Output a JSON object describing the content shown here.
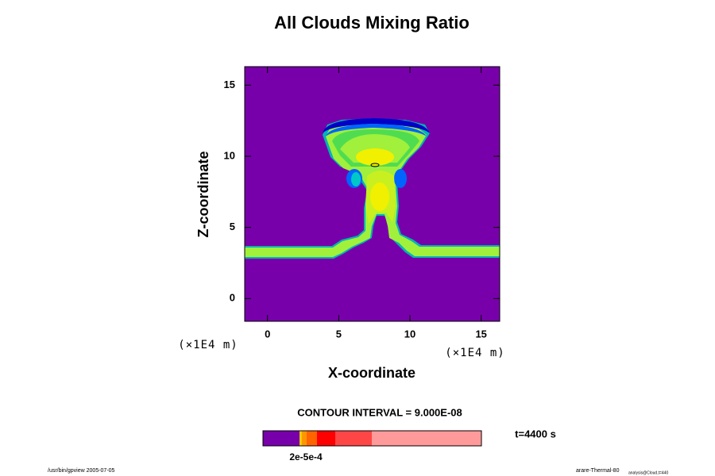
{
  "chart_data": {
    "type": "contour",
    "title": "All Clouds Mixing Ratio",
    "xlabel": "X-coordinate",
    "ylabel": "Z-coordinate",
    "x_unit": "(×1E4 m)",
    "y_unit": "(×1E4 m)",
    "xlim": [
      -1.6,
      16.3
    ],
    "ylim": [
      -1.6,
      16.3
    ],
    "xticks": [
      0,
      5,
      10,
      15
    ],
    "yticks": [
      0,
      5,
      10,
      15
    ],
    "background_color": "#7800aa",
    "contour_interval": "CONTOUR INTERVAL = 9.000E-08",
    "time_label": "t=4400 s",
    "colorbar": {
      "colors": [
        "#7800aa",
        "#f0c800",
        "#ff9600",
        "#ff6400",
        "#ff0000",
        "#ff4646",
        "#ff9a9a"
      ],
      "label": "2e-5e-4"
    },
    "footer_left": "/usr/bin/gpview 2005-07-05",
    "footer_right": "arare-Thermal-80",
    "footer_right_sub": "analysis@Cloud,t=440"
  }
}
